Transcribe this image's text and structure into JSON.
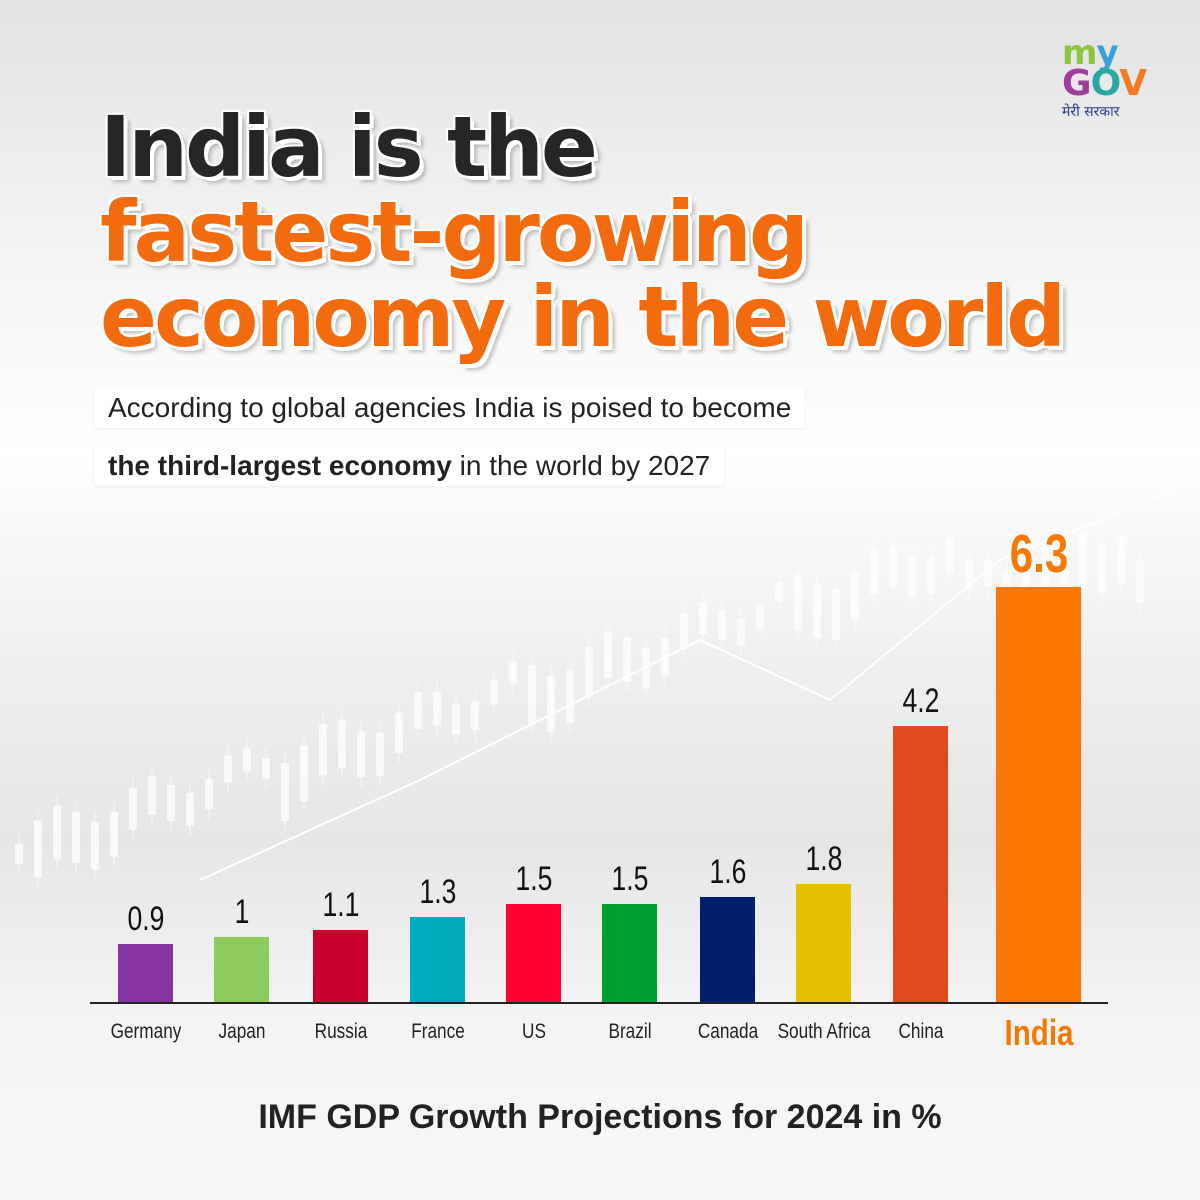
{
  "logo": {
    "my": "my",
    "gov": "GOV",
    "hindi": "मेरी सरकार"
  },
  "headline": {
    "line1": "India is the",
    "line2": "fastest-growing",
    "line3": "economy in the world"
  },
  "subtitle": {
    "line1": "According to global agencies India is poised to become",
    "line2_bold": "the third-largest economy",
    "line2_rest": " in the world by 2027"
  },
  "chart_data": {
    "type": "bar",
    "title": "IMF GDP Growth Projections for 2024 in %",
    "categories": [
      "Germany",
      "Japan",
      "Russia",
      "France",
      "US",
      "Brazil",
      "Canada",
      "South Africa",
      "China",
      "India"
    ],
    "values": [
      0.9,
      1,
      1.1,
      1.3,
      1.5,
      1.5,
      1.6,
      1.8,
      4.2,
      6.3
    ],
    "value_labels": [
      "0.9",
      "1",
      "1.1",
      "1.3",
      "1.5",
      "1.5",
      "1.6",
      "1.8",
      "4.2",
      "6.3"
    ],
    "colors": [
      "#8534a0",
      "#8ccb5c",
      "#c8002a",
      "#00abc0",
      "#ff0033",
      "#009e2f",
      "#00206b",
      "#e5c200",
      "#e14a1e",
      "#fb7805"
    ],
    "highlight": "India",
    "grid": false
  }
}
